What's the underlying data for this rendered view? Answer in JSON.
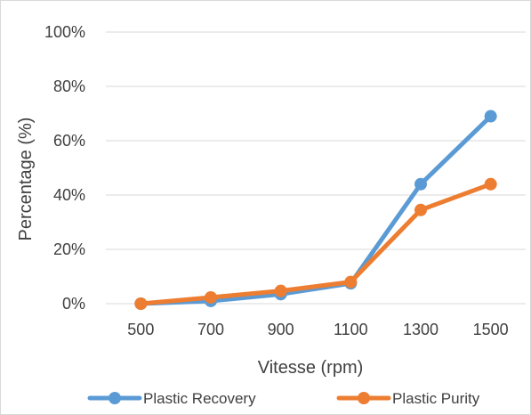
{
  "chart_data": {
    "type": "line",
    "title": "",
    "xlabel": "Vitesse (rpm)",
    "ylabel": "Percentage (%)",
    "categories": [
      "500",
      "700",
      "900",
      "1100",
      "1300",
      "1500"
    ],
    "ylim": [
      0,
      100
    ],
    "y_ticks": [
      "0%",
      "20%",
      "40%",
      "60%",
      "80%",
      "100%"
    ],
    "y_tick_values": [
      0,
      20,
      40,
      60,
      80,
      100
    ],
    "grid": "horizontal",
    "legend_position": "bottom",
    "series": [
      {
        "name": "Plastic Recovery",
        "color": "#5B9BD5",
        "values": [
          0,
          1,
          3.5,
          7.5,
          44,
          69
        ]
      },
      {
        "name": "Plastic Purity",
        "color": "#ED7D31",
        "values": [
          0,
          2.3,
          4.7,
          8,
          34.5,
          44
        ]
      }
    ]
  }
}
